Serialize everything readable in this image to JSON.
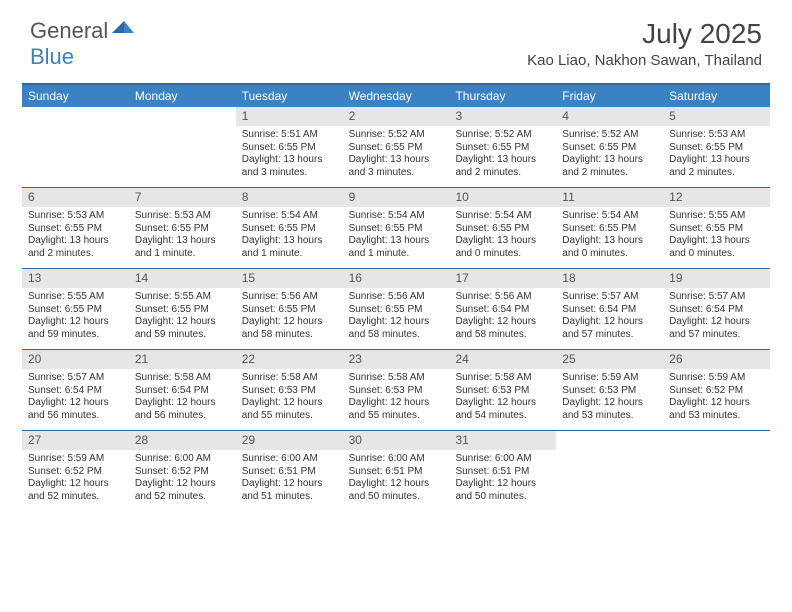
{
  "logo": {
    "part1": "General",
    "part2": "Blue"
  },
  "title": "July 2025",
  "location": "Kao Liao, Nakhon Sawan, Thailand",
  "colors": {
    "header_bg": "#3b82c4",
    "border": "#2a6aa8",
    "daynum_bg": "#e6e6e6",
    "text": "#333333"
  },
  "weekdays": [
    "Sunday",
    "Monday",
    "Tuesday",
    "Wednesday",
    "Thursday",
    "Friday",
    "Saturday"
  ],
  "weeks": [
    [
      {
        "n": "",
        "sr": "",
        "ss": "",
        "dl": ""
      },
      {
        "n": "",
        "sr": "",
        "ss": "",
        "dl": ""
      },
      {
        "n": "1",
        "sr": "Sunrise: 5:51 AM",
        "ss": "Sunset: 6:55 PM",
        "dl": "Daylight: 13 hours and 3 minutes."
      },
      {
        "n": "2",
        "sr": "Sunrise: 5:52 AM",
        "ss": "Sunset: 6:55 PM",
        "dl": "Daylight: 13 hours and 3 minutes."
      },
      {
        "n": "3",
        "sr": "Sunrise: 5:52 AM",
        "ss": "Sunset: 6:55 PM",
        "dl": "Daylight: 13 hours and 2 minutes."
      },
      {
        "n": "4",
        "sr": "Sunrise: 5:52 AM",
        "ss": "Sunset: 6:55 PM",
        "dl": "Daylight: 13 hours and 2 minutes."
      },
      {
        "n": "5",
        "sr": "Sunrise: 5:53 AM",
        "ss": "Sunset: 6:55 PM",
        "dl": "Daylight: 13 hours and 2 minutes."
      }
    ],
    [
      {
        "n": "6",
        "sr": "Sunrise: 5:53 AM",
        "ss": "Sunset: 6:55 PM",
        "dl": "Daylight: 13 hours and 2 minutes."
      },
      {
        "n": "7",
        "sr": "Sunrise: 5:53 AM",
        "ss": "Sunset: 6:55 PM",
        "dl": "Daylight: 13 hours and 1 minute."
      },
      {
        "n": "8",
        "sr": "Sunrise: 5:54 AM",
        "ss": "Sunset: 6:55 PM",
        "dl": "Daylight: 13 hours and 1 minute."
      },
      {
        "n": "9",
        "sr": "Sunrise: 5:54 AM",
        "ss": "Sunset: 6:55 PM",
        "dl": "Daylight: 13 hours and 1 minute."
      },
      {
        "n": "10",
        "sr": "Sunrise: 5:54 AM",
        "ss": "Sunset: 6:55 PM",
        "dl": "Daylight: 13 hours and 0 minutes."
      },
      {
        "n": "11",
        "sr": "Sunrise: 5:54 AM",
        "ss": "Sunset: 6:55 PM",
        "dl": "Daylight: 13 hours and 0 minutes."
      },
      {
        "n": "12",
        "sr": "Sunrise: 5:55 AM",
        "ss": "Sunset: 6:55 PM",
        "dl": "Daylight: 13 hours and 0 minutes."
      }
    ],
    [
      {
        "n": "13",
        "sr": "Sunrise: 5:55 AM",
        "ss": "Sunset: 6:55 PM",
        "dl": "Daylight: 12 hours and 59 minutes."
      },
      {
        "n": "14",
        "sr": "Sunrise: 5:55 AM",
        "ss": "Sunset: 6:55 PM",
        "dl": "Daylight: 12 hours and 59 minutes."
      },
      {
        "n": "15",
        "sr": "Sunrise: 5:56 AM",
        "ss": "Sunset: 6:55 PM",
        "dl": "Daylight: 12 hours and 58 minutes."
      },
      {
        "n": "16",
        "sr": "Sunrise: 5:56 AM",
        "ss": "Sunset: 6:55 PM",
        "dl": "Daylight: 12 hours and 58 minutes."
      },
      {
        "n": "17",
        "sr": "Sunrise: 5:56 AM",
        "ss": "Sunset: 6:54 PM",
        "dl": "Daylight: 12 hours and 58 minutes."
      },
      {
        "n": "18",
        "sr": "Sunrise: 5:57 AM",
        "ss": "Sunset: 6:54 PM",
        "dl": "Daylight: 12 hours and 57 minutes."
      },
      {
        "n": "19",
        "sr": "Sunrise: 5:57 AM",
        "ss": "Sunset: 6:54 PM",
        "dl": "Daylight: 12 hours and 57 minutes."
      }
    ],
    [
      {
        "n": "20",
        "sr": "Sunrise: 5:57 AM",
        "ss": "Sunset: 6:54 PM",
        "dl": "Daylight: 12 hours and 56 minutes."
      },
      {
        "n": "21",
        "sr": "Sunrise: 5:58 AM",
        "ss": "Sunset: 6:54 PM",
        "dl": "Daylight: 12 hours and 56 minutes."
      },
      {
        "n": "22",
        "sr": "Sunrise: 5:58 AM",
        "ss": "Sunset: 6:53 PM",
        "dl": "Daylight: 12 hours and 55 minutes."
      },
      {
        "n": "23",
        "sr": "Sunrise: 5:58 AM",
        "ss": "Sunset: 6:53 PM",
        "dl": "Daylight: 12 hours and 55 minutes."
      },
      {
        "n": "24",
        "sr": "Sunrise: 5:58 AM",
        "ss": "Sunset: 6:53 PM",
        "dl": "Daylight: 12 hours and 54 minutes."
      },
      {
        "n": "25",
        "sr": "Sunrise: 5:59 AM",
        "ss": "Sunset: 6:53 PM",
        "dl": "Daylight: 12 hours and 53 minutes."
      },
      {
        "n": "26",
        "sr": "Sunrise: 5:59 AM",
        "ss": "Sunset: 6:52 PM",
        "dl": "Daylight: 12 hours and 53 minutes."
      }
    ],
    [
      {
        "n": "27",
        "sr": "Sunrise: 5:59 AM",
        "ss": "Sunset: 6:52 PM",
        "dl": "Daylight: 12 hours and 52 minutes."
      },
      {
        "n": "28",
        "sr": "Sunrise: 6:00 AM",
        "ss": "Sunset: 6:52 PM",
        "dl": "Daylight: 12 hours and 52 minutes."
      },
      {
        "n": "29",
        "sr": "Sunrise: 6:00 AM",
        "ss": "Sunset: 6:51 PM",
        "dl": "Daylight: 12 hours and 51 minutes."
      },
      {
        "n": "30",
        "sr": "Sunrise: 6:00 AM",
        "ss": "Sunset: 6:51 PM",
        "dl": "Daylight: 12 hours and 50 minutes."
      },
      {
        "n": "31",
        "sr": "Sunrise: 6:00 AM",
        "ss": "Sunset: 6:51 PM",
        "dl": "Daylight: 12 hours and 50 minutes."
      },
      {
        "n": "",
        "sr": "",
        "ss": "",
        "dl": ""
      },
      {
        "n": "",
        "sr": "",
        "ss": "",
        "dl": ""
      }
    ]
  ]
}
